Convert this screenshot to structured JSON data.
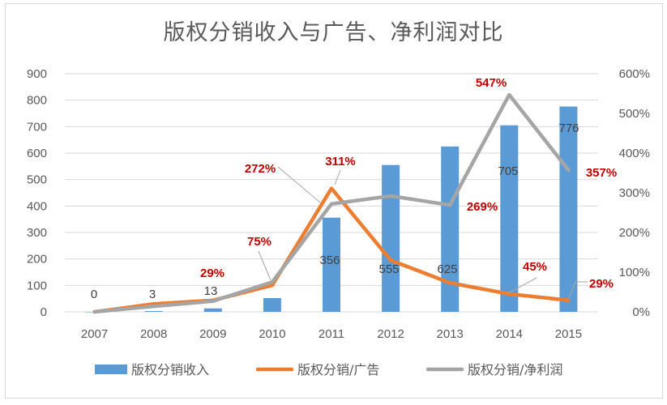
{
  "chart_data": {
    "type": "bar+line",
    "title": "版权分销收入与广告、净利润对比",
    "categories": [
      "2007",
      "2008",
      "2009",
      "2010",
      "2011",
      "2012",
      "2013",
      "2014",
      "2015"
    ],
    "y_left": {
      "range": [
        0,
        900
      ],
      "ticks": [
        "0",
        "100",
        "200",
        "300",
        "400",
        "500",
        "600",
        "700",
        "800",
        "900"
      ]
    },
    "y_right": {
      "range": [
        0,
        6
      ],
      "ticks": [
        "0%",
        "100%",
        "200%",
        "300%",
        "400%",
        "500%",
        "600%"
      ]
    },
    "grid": true,
    "legend_position": "bottom",
    "series": [
      {
        "name": "版权分销收入",
        "type": "bar",
        "axis": "left",
        "color": "#5b9bd5",
        "values": [
          0,
          3,
          13,
          52,
          356,
          555,
          625,
          705,
          776
        ],
        "labels": [
          "0",
          "3",
          "13",
          null,
          "356",
          "555",
          "625",
          "705",
          "776"
        ]
      },
      {
        "name": "版权分销/广告",
        "type": "line",
        "axis": "right",
        "color": "#ed7d31",
        "values": [
          0,
          0.2,
          0.29,
          0.67,
          3.11,
          1.3,
          0.73,
          0.45,
          0.29
        ],
        "labels": [
          null,
          null,
          "29%",
          null,
          "311%",
          null,
          null,
          "45%",
          "29%"
        ]
      },
      {
        "name": "版权分销/净利润",
        "type": "line",
        "axis": "right",
        "color": "#a5a5a5",
        "values": [
          0,
          0.14,
          0.27,
          0.75,
          2.72,
          2.92,
          2.69,
          5.47,
          3.57
        ],
        "labels": [
          null,
          null,
          null,
          "75%",
          "272%",
          null,
          "269%",
          "547%",
          "357%"
        ]
      }
    ]
  }
}
